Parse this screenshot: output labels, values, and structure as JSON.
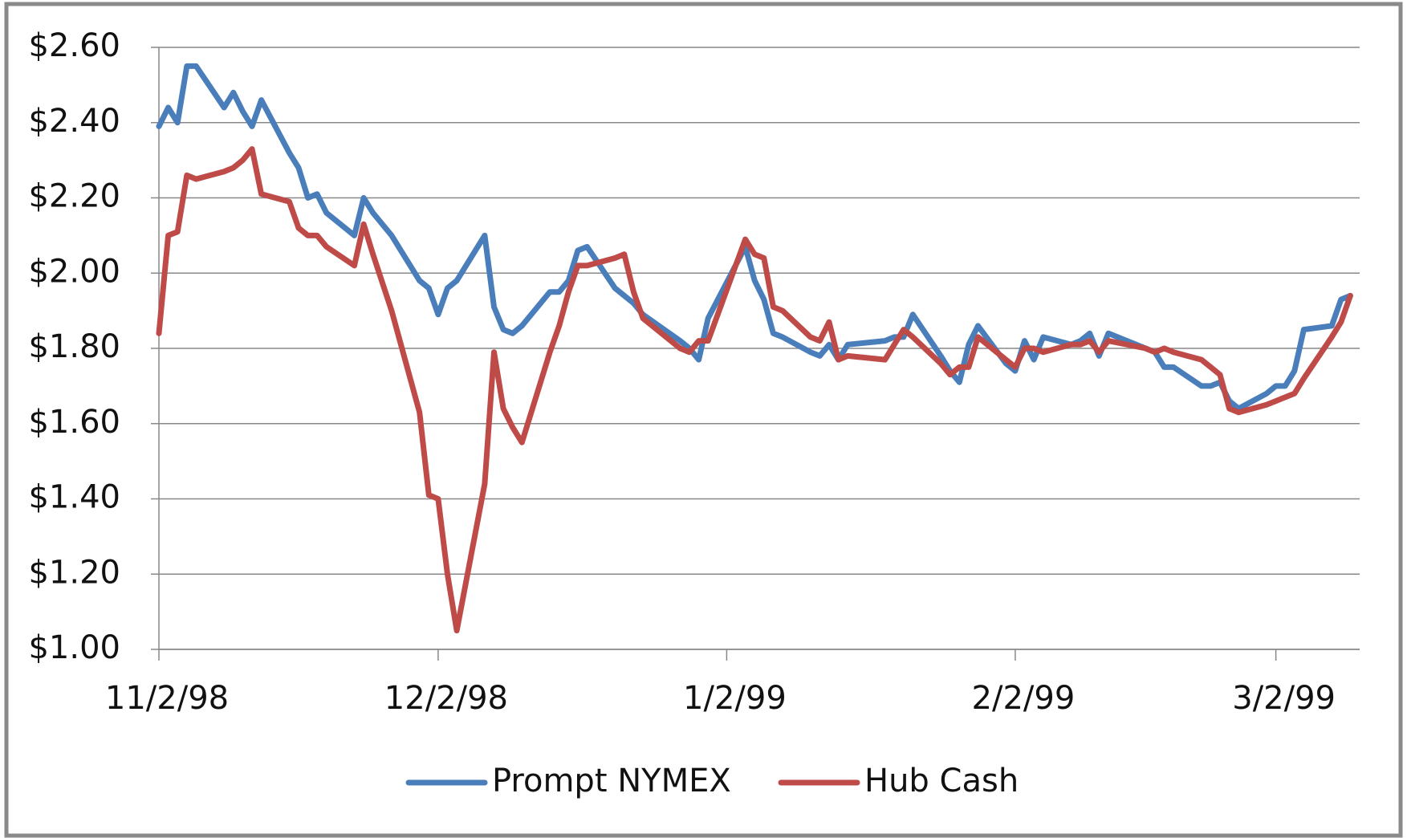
{
  "chart_data": {
    "type": "line",
    "x": [
      "1998-11-02",
      "1998-11-03",
      "1998-11-04",
      "1998-11-05",
      "1998-11-06",
      "1998-11-09",
      "1998-11-10",
      "1998-11-11",
      "1998-11-12",
      "1998-11-13",
      "1998-11-16",
      "1998-11-17",
      "1998-11-18",
      "1998-11-19",
      "1998-11-20",
      "1998-11-23",
      "1998-11-24",
      "1998-11-25",
      "1998-11-27",
      "1998-11-30",
      "1998-12-01",
      "1998-12-02",
      "1998-12-03",
      "1998-12-04",
      "1998-12-07",
      "1998-12-08",
      "1998-12-09",
      "1998-12-10",
      "1998-12-11",
      "1998-12-14",
      "1998-12-15",
      "1998-12-16",
      "1998-12-17",
      "1998-12-18",
      "1998-12-21",
      "1998-12-22",
      "1998-12-23",
      "1998-12-24",
      "1998-12-28",
      "1998-12-29",
      "1998-12-30",
      "1998-12-31",
      "1999-01-04",
      "1999-01-05",
      "1999-01-06",
      "1999-01-07",
      "1999-01-08",
      "1999-01-11",
      "1999-01-12",
      "1999-01-13",
      "1999-01-14",
      "1999-01-15",
      "1999-01-19",
      "1999-01-20",
      "1999-01-21",
      "1999-01-22",
      "1999-01-25",
      "1999-01-26",
      "1999-01-27",
      "1999-01-28",
      "1999-01-29",
      "1999-02-01",
      "1999-02-02",
      "1999-02-03",
      "1999-02-04",
      "1999-02-05",
      "1999-02-08",
      "1999-02-09",
      "1999-02-10",
      "1999-02-11",
      "1999-02-12",
      "1999-02-16",
      "1999-02-17",
      "1999-02-18",
      "1999-02-19",
      "1999-02-22",
      "1999-02-23",
      "1999-02-24",
      "1999-02-25",
      "1999-02-26",
      "1999-03-01",
      "1999-03-02",
      "1999-03-03",
      "1999-03-04",
      "1999-03-05",
      "1999-03-08",
      "1999-03-09",
      "1999-03-10"
    ],
    "series": [
      {
        "name": "Prompt NYMEX",
        "color": "#4a7ebb",
        "values": [
          2.39,
          2.44,
          2.4,
          2.55,
          2.55,
          2.44,
          2.48,
          2.43,
          2.39,
          2.46,
          2.32,
          2.28,
          2.2,
          2.21,
          2.16,
          2.1,
          2.2,
          2.16,
          2.1,
          1.98,
          1.96,
          1.89,
          1.96,
          1.98,
          2.1,
          1.91,
          1.85,
          1.84,
          1.86,
          1.95,
          1.95,
          1.98,
          2.06,
          2.07,
          1.96,
          1.94,
          1.92,
          1.89,
          1.82,
          1.8,
          1.77,
          1.88,
          2.07,
          1.98,
          1.93,
          1.84,
          1.83,
          1.79,
          1.78,
          1.81,
          1.77,
          1.81,
          1.82,
          1.83,
          1.83,
          1.89,
          1.78,
          1.74,
          1.71,
          1.81,
          1.86,
          1.76,
          1.74,
          1.82,
          1.77,
          1.83,
          1.81,
          1.82,
          1.84,
          1.78,
          1.84,
          1.8,
          1.79,
          1.75,
          1.75,
          1.7,
          1.7,
          1.71,
          1.66,
          1.64,
          1.68,
          1.7,
          1.7,
          1.74,
          1.85,
          1.86,
          1.93,
          1.94
        ]
      },
      {
        "name": "Hub Cash",
        "color": "#be4b48",
        "values": [
          1.84,
          2.1,
          2.11,
          2.26,
          2.25,
          2.27,
          2.28,
          2.3,
          2.33,
          2.21,
          2.19,
          2.12,
          2.1,
          2.1,
          2.07,
          2.02,
          2.13,
          2.05,
          1.9,
          1.63,
          1.41,
          1.4,
          1.2,
          1.05,
          1.44,
          1.79,
          1.64,
          1.59,
          1.55,
          1.79,
          1.86,
          1.95,
          2.02,
          2.02,
          2.04,
          2.05,
          1.95,
          1.88,
          1.8,
          1.79,
          1.82,
          1.82,
          2.09,
          2.05,
          2.04,
          1.91,
          1.9,
          1.83,
          1.82,
          1.87,
          1.77,
          1.78,
          1.77,
          1.81,
          1.85,
          1.83,
          1.76,
          1.73,
          1.75,
          1.75,
          1.83,
          1.77,
          1.75,
          1.8,
          1.8,
          1.79,
          1.81,
          1.81,
          1.82,
          1.79,
          1.82,
          1.8,
          1.79,
          1.8,
          1.79,
          1.77,
          1.75,
          1.73,
          1.64,
          1.63,
          1.65,
          1.66,
          1.67,
          1.68,
          1.72,
          1.83,
          1.87,
          1.94
        ]
      }
    ],
    "xlim": [
      "1998-11-02",
      "1999-03-11"
    ],
    "xticks": [
      {
        "value": "1998-11-02",
        "label": "11/2/98"
      },
      {
        "value": "1998-12-02",
        "label": "12/2/98"
      },
      {
        "value": "1999-01-02",
        "label": "1/2/99"
      },
      {
        "value": "1999-02-02",
        "label": "2/2/99"
      },
      {
        "value": "1999-03-02",
        "label": "3/2/99"
      }
    ],
    "ylim": [
      1.0,
      2.6
    ],
    "yticks": [
      {
        "value": 1.0,
        "label": "$1.00"
      },
      {
        "value": 1.2,
        "label": "$1.20"
      },
      {
        "value": 1.4,
        "label": "$1.40"
      },
      {
        "value": 1.6,
        "label": "$1.60"
      },
      {
        "value": 1.8,
        "label": "$1.80"
      },
      {
        "value": 2.0,
        "label": "$2.00"
      },
      {
        "value": 2.2,
        "label": "$2.20"
      },
      {
        "value": 2.4,
        "label": "$2.40"
      },
      {
        "value": 2.6,
        "label": "$2.60"
      }
    ],
    "grid": true,
    "legend": "bottom"
  }
}
